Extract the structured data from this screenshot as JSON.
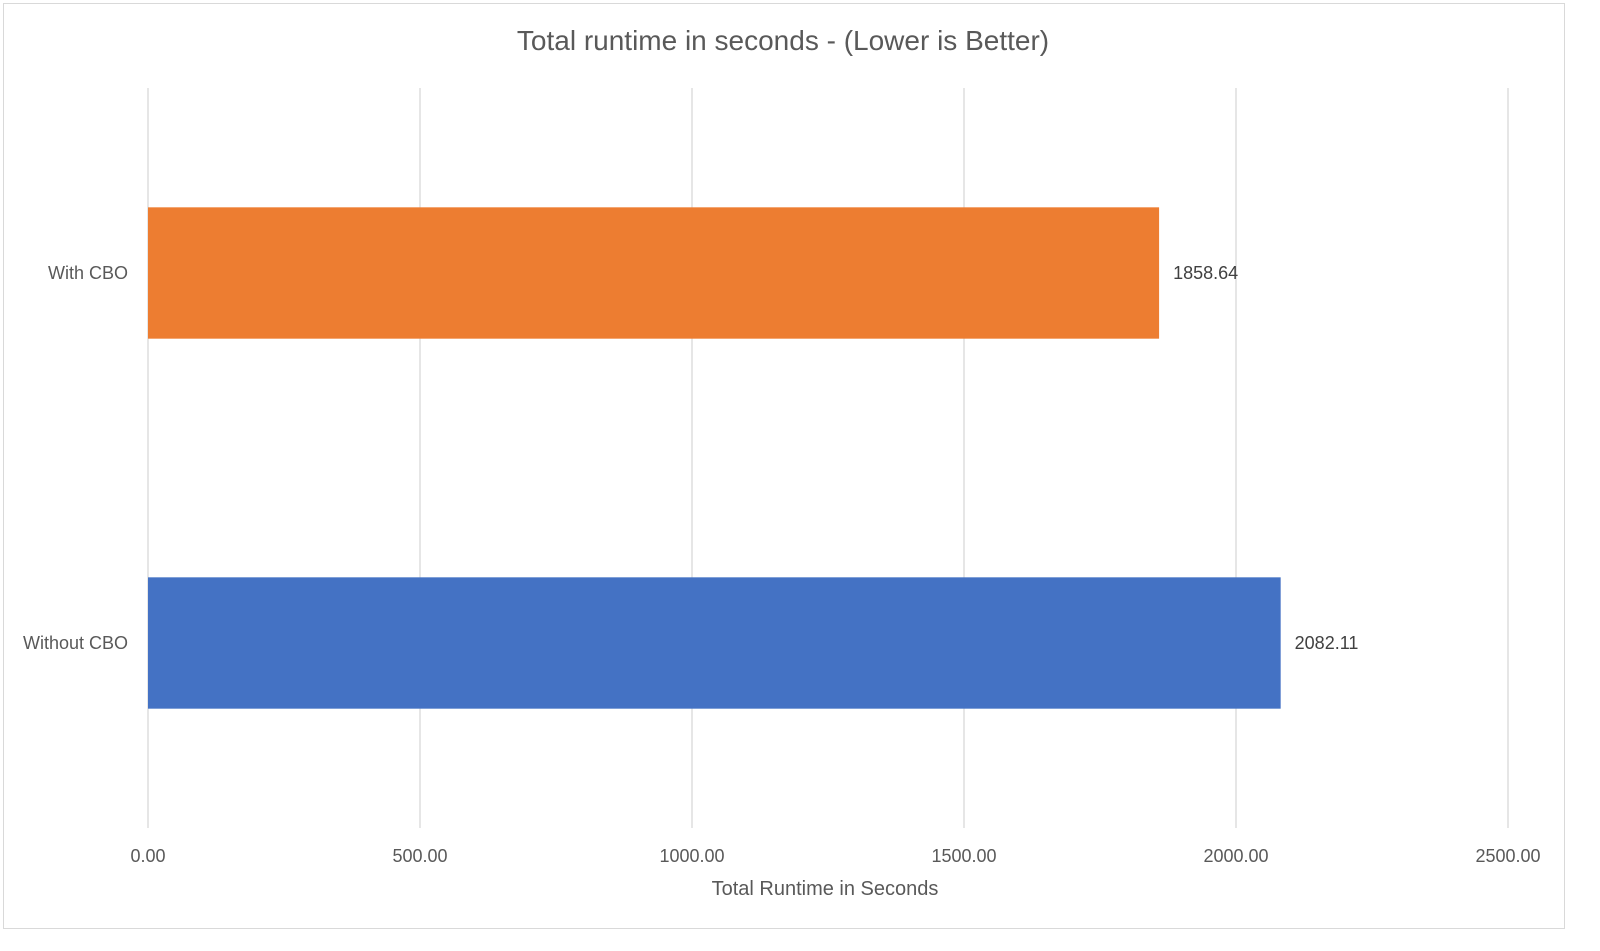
{
  "chart_data": {
    "type": "bar",
    "orientation": "horizontal",
    "title": "Total runtime in seconds - (Lower is Better)",
    "xlabel": "Total Runtime in Seconds",
    "ylabel": "",
    "xlim": [
      0,
      2500
    ],
    "x_ticks": [
      "0.00",
      "500.00",
      "1000.00",
      "1500.00",
      "2000.00",
      "2500.00"
    ],
    "x_tick_values": [
      0,
      500,
      1000,
      1500,
      2000,
      2500
    ],
    "grid": "vertical",
    "legend": "none",
    "categories": [
      "With CBO",
      "Without CBO"
    ],
    "values": [
      1858.64,
      2082.11
    ],
    "data_labels": [
      "1858.64",
      "2082.11"
    ],
    "colors": [
      "#ED7D31",
      "#4472C4"
    ]
  }
}
